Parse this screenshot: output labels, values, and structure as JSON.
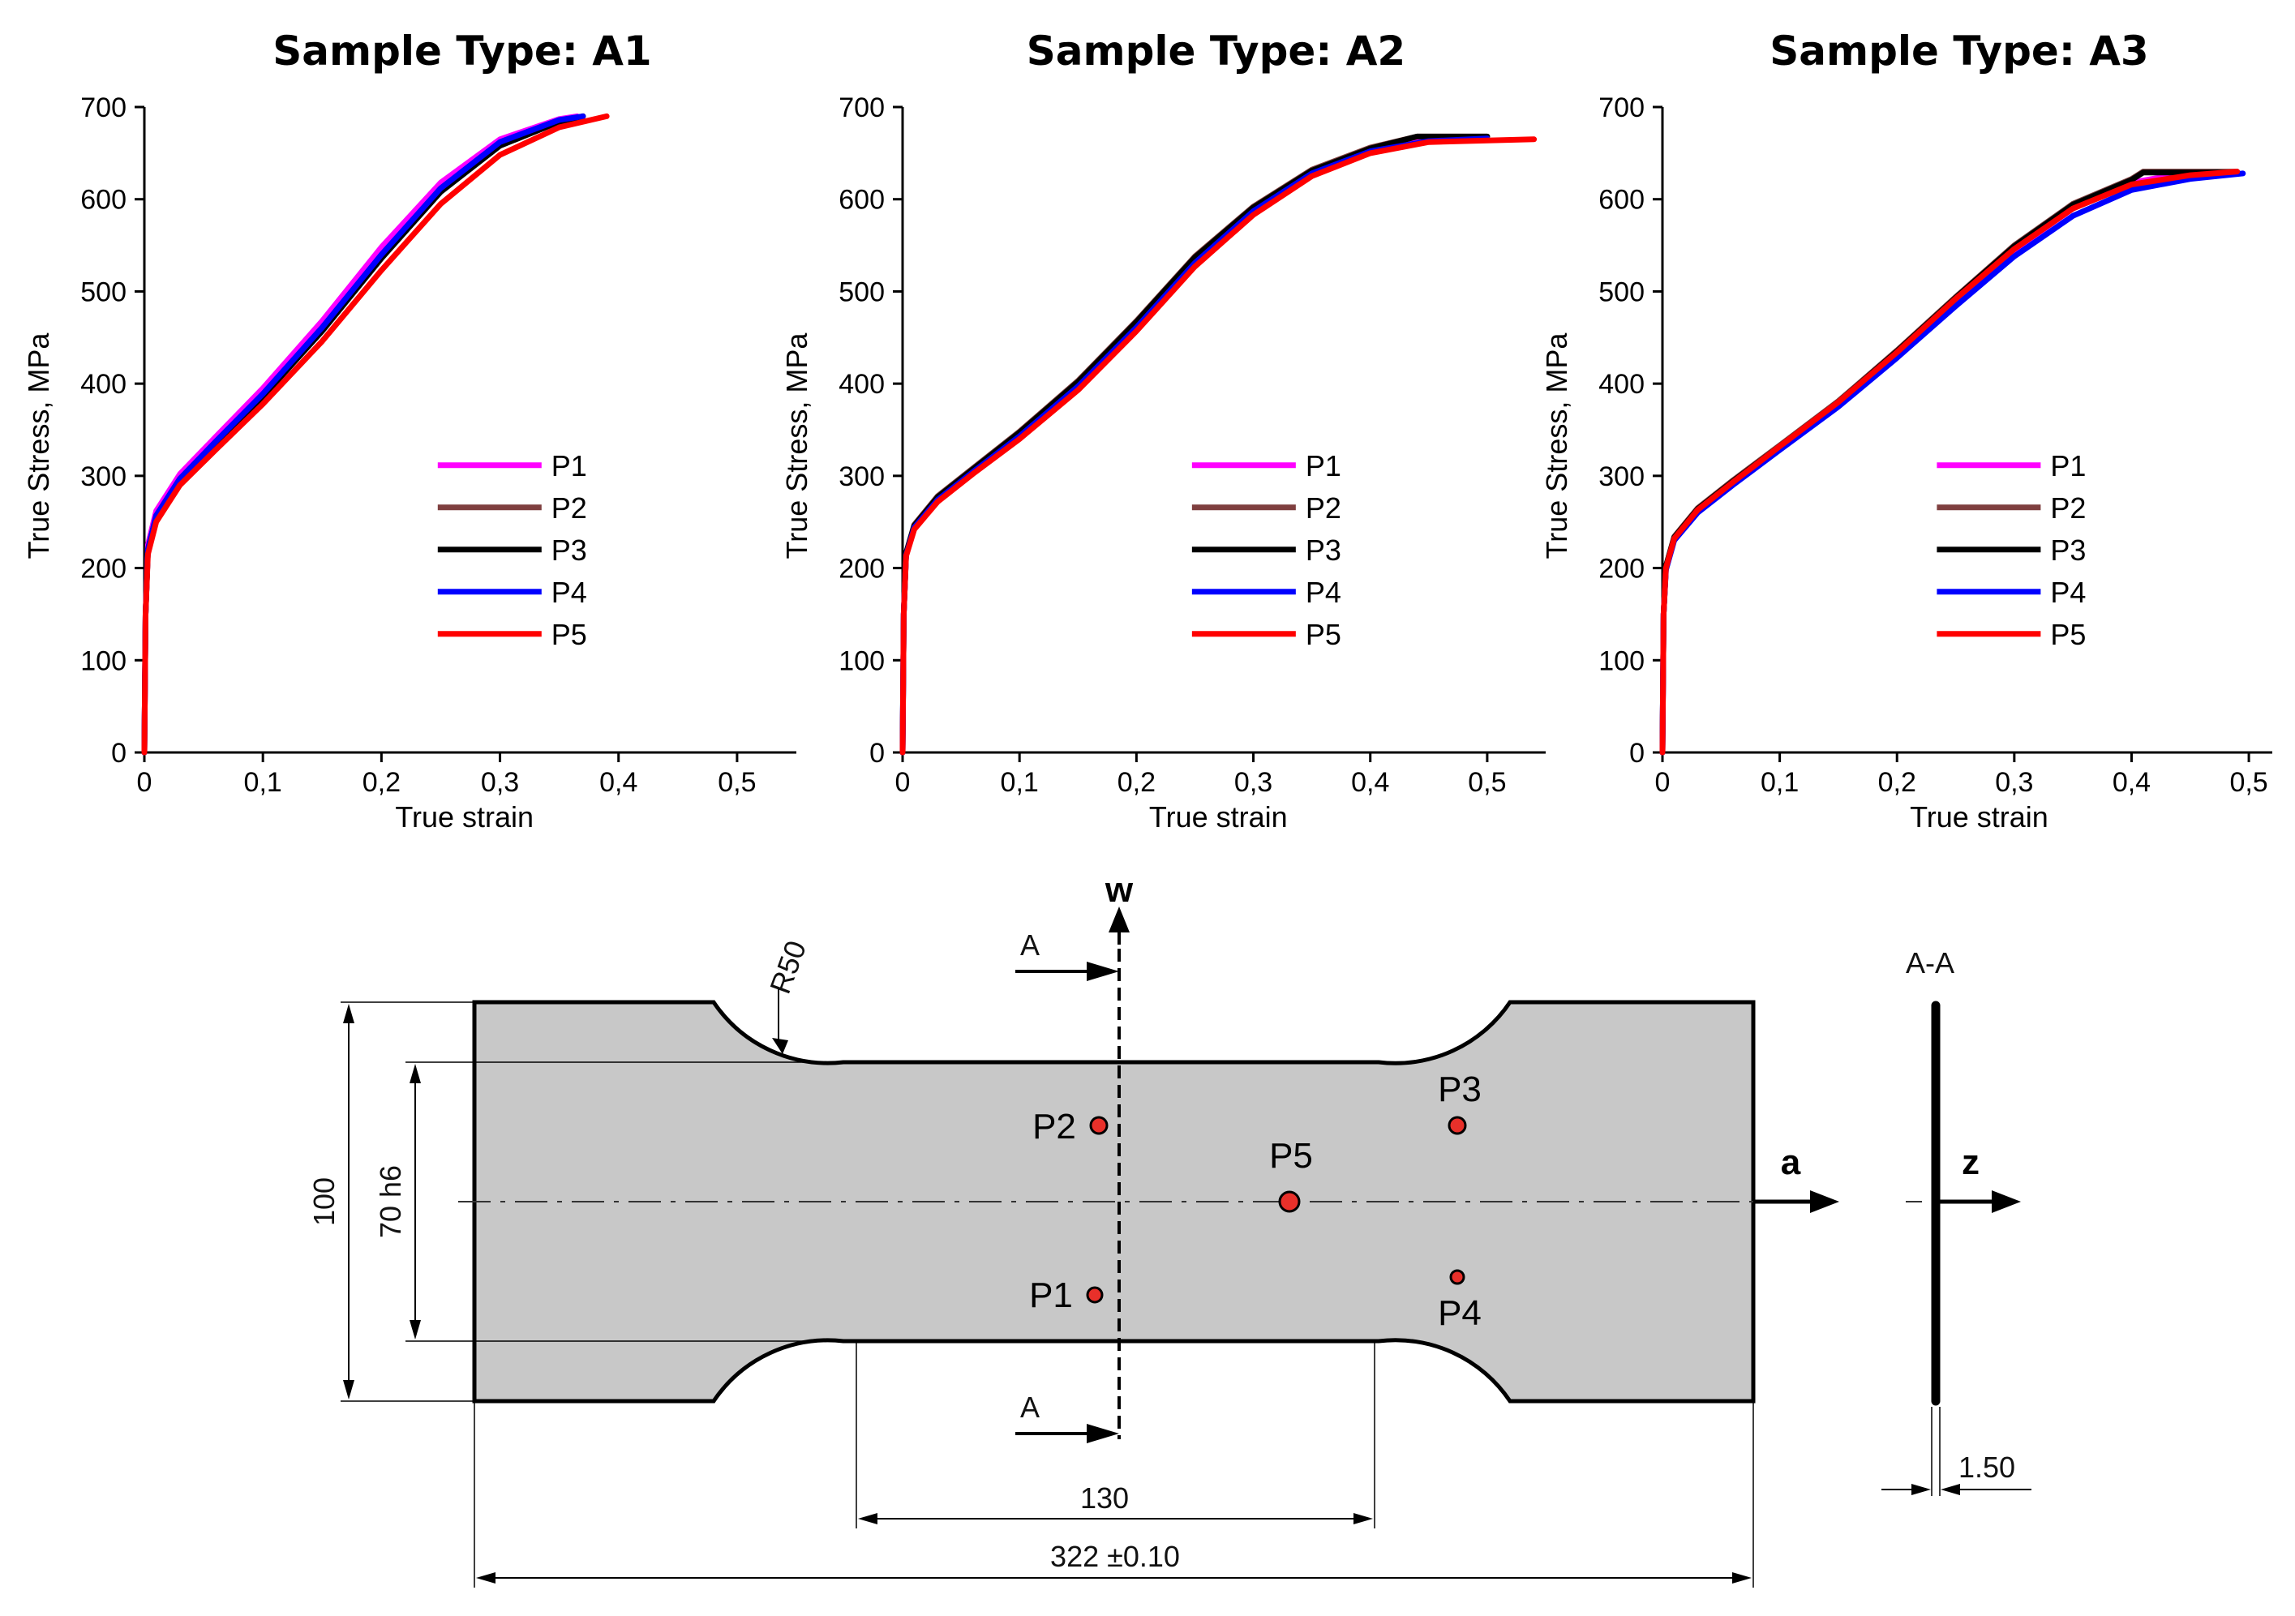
{
  "chart_data": [
    {
      "type": "line",
      "title": "Sample Type: A1",
      "xlabel": "True strain",
      "ylabel": "True Stress, MPa",
      "xlim": [
        0,
        0.55
      ],
      "ylim": [
        0,
        700
      ],
      "xticks": [
        "0",
        "0,1",
        "0,2",
        "0,3",
        "0,4",
        "0,5"
      ],
      "yticks": [
        "0",
        "100",
        "200",
        "300",
        "400",
        "500",
        "600",
        "700"
      ],
      "legend_position": "lower-right",
      "series": [
        {
          "name": "P1",
          "color": "#ff00ff",
          "x": [
            0,
            0.001,
            0.003,
            0.01,
            0.03,
            0.06,
            0.1,
            0.15,
            0.2,
            0.25,
            0.3,
            0.35,
            0.365
          ],
          "y": [
            0,
            150,
            225,
            262,
            302,
            342,
            395,
            468,
            548,
            618,
            665,
            687,
            690
          ]
        },
        {
          "name": "P2",
          "color": "#7f3f3f",
          "x": [
            0,
            0.001,
            0.003,
            0.01,
            0.03,
            0.06,
            0.1,
            0.15,
            0.2,
            0.25,
            0.3,
            0.35,
            0.37
          ],
          "y": [
            0,
            150,
            220,
            257,
            297,
            336,
            388,
            459,
            538,
            610,
            660,
            685,
            690
          ]
        },
        {
          "name": "P3",
          "color": "#000000",
          "x": [
            0,
            0.001,
            0.003,
            0.01,
            0.03,
            0.06,
            0.1,
            0.15,
            0.2,
            0.25,
            0.3,
            0.35,
            0.37
          ],
          "y": [
            0,
            150,
            220,
            256,
            296,
            335,
            386,
            457,
            536,
            608,
            658,
            684,
            690
          ]
        },
        {
          "name": "P4",
          "color": "#0000ff",
          "x": [
            0,
            0.001,
            0.003,
            0.01,
            0.03,
            0.06,
            0.1,
            0.15,
            0.2,
            0.25,
            0.3,
            0.35,
            0.37
          ],
          "y": [
            0,
            150,
            220,
            257,
            297,
            337,
            389,
            461,
            540,
            612,
            662,
            686,
            690
          ]
        },
        {
          "name": "P5",
          "color": "#ff0000",
          "x": [
            0,
            0.001,
            0.003,
            0.01,
            0.03,
            0.06,
            0.1,
            0.15,
            0.2,
            0.25,
            0.3,
            0.35,
            0.39
          ],
          "y": [
            0,
            150,
            215,
            250,
            290,
            328,
            378,
            446,
            523,
            595,
            648,
            678,
            690
          ]
        }
      ]
    },
    {
      "type": "line",
      "title": "Sample Type: A2",
      "xlabel": "True strain",
      "ylabel": "True Stress, MPa",
      "xlim": [
        0,
        0.55
      ],
      "ylim": [
        0,
        700
      ],
      "xticks": [
        "0",
        "0,1",
        "0,2",
        "0,3",
        "0,4",
        "0,5"
      ],
      "yticks": [
        "0",
        "100",
        "200",
        "300",
        "400",
        "500",
        "600",
        "700"
      ],
      "legend_position": "lower-right",
      "series": [
        {
          "name": "P1",
          "color": "#ff00ff",
          "x": [
            0,
            0.001,
            0.003,
            0.01,
            0.03,
            0.06,
            0.1,
            0.15,
            0.2,
            0.25,
            0.3,
            0.35,
            0.4,
            0.44,
            0.5
          ],
          "y": [
            0,
            150,
            215,
            245,
            275,
            305,
            345,
            400,
            465,
            535,
            590,
            630,
            655,
            665,
            665
          ]
        },
        {
          "name": "P2",
          "color": "#7f3f3f",
          "x": [
            0,
            0.001,
            0.003,
            0.01,
            0.03,
            0.06,
            0.1,
            0.15,
            0.2,
            0.25,
            0.3,
            0.35,
            0.4,
            0.44,
            0.5
          ],
          "y": [
            0,
            150,
            216,
            247,
            278,
            308,
            348,
            403,
            468,
            538,
            592,
            632,
            656,
            668,
            668
          ]
        },
        {
          "name": "P3",
          "color": "#000000",
          "x": [
            0,
            0.001,
            0.003,
            0.01,
            0.03,
            0.06,
            0.1,
            0.15,
            0.2,
            0.25,
            0.3,
            0.35,
            0.4,
            0.44,
            0.5
          ],
          "y": [
            0,
            150,
            216,
            246,
            277,
            307,
            347,
            402,
            467,
            537,
            591,
            631,
            655,
            668,
            668
          ]
        },
        {
          "name": "P4",
          "color": "#0000ff",
          "x": [
            0,
            0.001,
            0.003,
            0.01,
            0.03,
            0.06,
            0.1,
            0.15,
            0.2,
            0.25,
            0.3,
            0.35,
            0.4,
            0.45,
            0.5
          ],
          "y": [
            0,
            150,
            214,
            244,
            274,
            304,
            343,
            397,
            461,
            531,
            587,
            628,
            652,
            663,
            666
          ]
        },
        {
          "name": "P5",
          "color": "#ff0000",
          "x": [
            0,
            0.001,
            0.003,
            0.01,
            0.03,
            0.06,
            0.1,
            0.15,
            0.2,
            0.25,
            0.3,
            0.35,
            0.4,
            0.45,
            0.54
          ],
          "y": [
            0,
            150,
            213,
            242,
            272,
            302,
            340,
            393,
            457,
            527,
            583,
            625,
            650,
            662,
            665
          ]
        }
      ]
    },
    {
      "type": "line",
      "title": "Sample Type: A3",
      "xlabel": "True strain",
      "ylabel": "True Stress, MPa",
      "xlim": [
        0,
        0.52
      ],
      "ylim": [
        0,
        700
      ],
      "xticks": [
        "0",
        "0,1",
        "0,2",
        "0,3",
        "0,4",
        "0,5"
      ],
      "yticks": [
        "0",
        "100",
        "200",
        "300",
        "400",
        "500",
        "600",
        "700"
      ],
      "legend_position": "lower-right",
      "series": [
        {
          "name": "P1",
          "color": "#ff00ff",
          "x": [
            0,
            0.001,
            0.003,
            0.01,
            0.03,
            0.06,
            0.1,
            0.15,
            0.2,
            0.25,
            0.3,
            0.35,
            0.4,
            0.44,
            0.49
          ],
          "y": [
            0,
            150,
            200,
            232,
            262,
            292,
            330,
            378,
            432,
            490,
            545,
            590,
            618,
            627,
            630
          ]
        },
        {
          "name": "P2",
          "color": "#7f3f3f",
          "x": [
            0,
            0.001,
            0.003,
            0.01,
            0.03,
            0.06,
            0.1,
            0.15,
            0.2,
            0.25,
            0.3,
            0.35,
            0.4,
            0.41,
            0.49
          ],
          "y": [
            0,
            150,
            202,
            234,
            265,
            295,
            333,
            381,
            436,
            494,
            550,
            595,
            622,
            630,
            630
          ]
        },
        {
          "name": "P3",
          "color": "#000000",
          "x": [
            0,
            0.001,
            0.003,
            0.01,
            0.03,
            0.06,
            0.1,
            0.15,
            0.2,
            0.25,
            0.3,
            0.35,
            0.4,
            0.41,
            0.49
          ],
          "y": [
            0,
            150,
            202,
            233,
            264,
            294,
            332,
            380,
            435,
            493,
            549,
            594,
            621,
            629,
            629
          ]
        },
        {
          "name": "P4",
          "color": "#0000ff",
          "x": [
            0,
            0.001,
            0.003,
            0.01,
            0.03,
            0.06,
            0.1,
            0.15,
            0.2,
            0.25,
            0.3,
            0.35,
            0.4,
            0.45,
            0.495
          ],
          "y": [
            0,
            150,
            198,
            230,
            260,
            290,
            328,
            375,
            428,
            484,
            538,
            582,
            610,
            622,
            628
          ]
        },
        {
          "name": "P5",
          "color": "#ff0000",
          "x": [
            0,
            0.001,
            0.003,
            0.01,
            0.03,
            0.06,
            0.1,
            0.15,
            0.2,
            0.25,
            0.3,
            0.35,
            0.4,
            0.45,
            0.49
          ],
          "y": [
            0,
            150,
            200,
            232,
            263,
            293,
            332,
            380,
            434,
            492,
            546,
            590,
            616,
            626,
            630
          ]
        }
      ]
    }
  ],
  "diagram": {
    "section_label_top": "A",
    "section_label_bottom": "A",
    "section_view_title": "A-A",
    "axis_w": "w",
    "axis_a": "a",
    "axis_z": "z",
    "radius_label": "R50",
    "dim_total_height": "100",
    "dim_gauge_width": "70 h6",
    "dim_gauge_length": "130",
    "dim_total_length": "322 ±0.10",
    "dim_thickness": "1.50",
    "points": [
      "P1",
      "P2",
      "P3",
      "P4",
      "P5"
    ],
    "fill_color": "#c8c8c8",
    "point_color": "#e8302a"
  }
}
